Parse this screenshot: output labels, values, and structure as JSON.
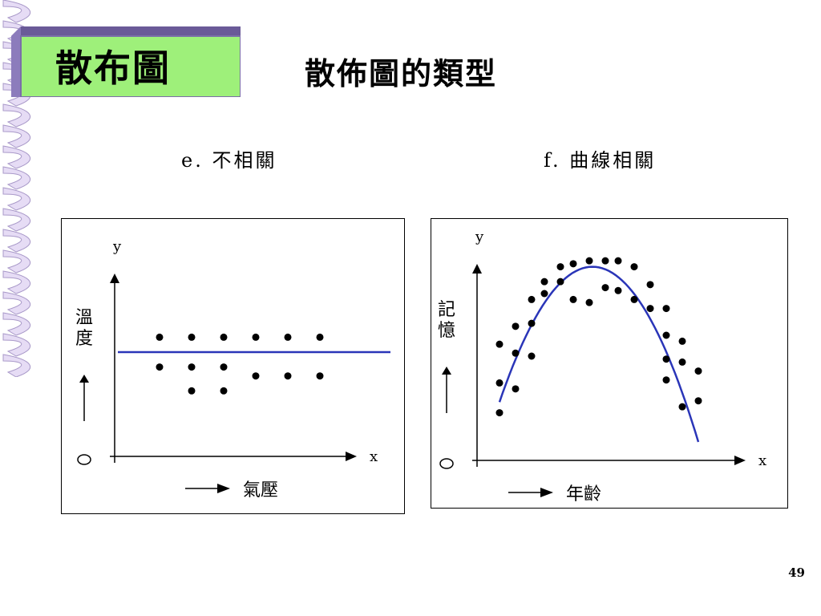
{
  "slide": {
    "tag_title": "散布圖",
    "main_title": "散佈圖的類型",
    "page_number": "49"
  },
  "colors": {
    "tag_green": "#9ef07a",
    "tag_border": "#7b6ea8",
    "fit_line": "#2a35b8",
    "ribbon": "#c9b8e6"
  },
  "chart_data": [
    {
      "type": "scatter",
      "title": "e. 不相關",
      "ylabel_axis": "y",
      "xlabel_axis": "x",
      "ylabel": "溫度",
      "xlabel": "氣壓",
      "origin_label": "O",
      "fit": "horizontal",
      "fit_y": 3.5,
      "xlim": [
        0,
        8.5
      ],
      "ylim": [
        0,
        7
      ],
      "points": [
        [
          1.4,
          4.0
        ],
        [
          2.4,
          4.0
        ],
        [
          3.4,
          4.0
        ],
        [
          4.4,
          4.0
        ],
        [
          5.4,
          4.0
        ],
        [
          6.4,
          4.0
        ],
        [
          1.4,
          3.0
        ],
        [
          2.4,
          3.0
        ],
        [
          3.4,
          3.0
        ],
        [
          4.4,
          2.7
        ],
        [
          5.4,
          2.7
        ],
        [
          6.4,
          2.7
        ],
        [
          2.4,
          2.2
        ],
        [
          3.4,
          2.2
        ]
      ]
    },
    {
      "type": "scatter",
      "title": "f. 曲線相關",
      "ylabel_axis": "y",
      "xlabel_axis": "x",
      "ylabel": "記憶",
      "xlabel": "年齡",
      "origin_label": "O",
      "fit": "curve",
      "xlim": [
        0,
        8.5
      ],
      "ylim": [
        0,
        7
      ],
      "points": [
        [
          0.7,
          3.9
        ],
        [
          0.7,
          2.6
        ],
        [
          0.7,
          1.6
        ],
        [
          1.2,
          4.5
        ],
        [
          1.2,
          3.6
        ],
        [
          1.2,
          2.4
        ],
        [
          1.7,
          5.4
        ],
        [
          1.7,
          4.6
        ],
        [
          1.7,
          3.5
        ],
        [
          2.1,
          6.0
        ],
        [
          2.1,
          5.6
        ],
        [
          2.6,
          6.5
        ],
        [
          2.6,
          6.0
        ],
        [
          3.0,
          6.6
        ],
        [
          3.0,
          5.4
        ],
        [
          3.5,
          6.7
        ],
        [
          3.5,
          5.3
        ],
        [
          4.0,
          6.7
        ],
        [
          4.0,
          5.8
        ],
        [
          4.4,
          6.7
        ],
        [
          4.4,
          5.7
        ],
        [
          4.9,
          6.5
        ],
        [
          4.9,
          5.4
        ],
        [
          5.4,
          5.9
        ],
        [
          5.4,
          5.1
        ],
        [
          5.9,
          5.1
        ],
        [
          5.9,
          4.2
        ],
        [
          5.9,
          3.4
        ],
        [
          5.9,
          2.7
        ],
        [
          6.4,
          4.0
        ],
        [
          6.4,
          3.3
        ],
        [
          6.4,
          1.8
        ],
        [
          6.9,
          3.0
        ],
        [
          6.9,
          2.0
        ]
      ]
    }
  ]
}
